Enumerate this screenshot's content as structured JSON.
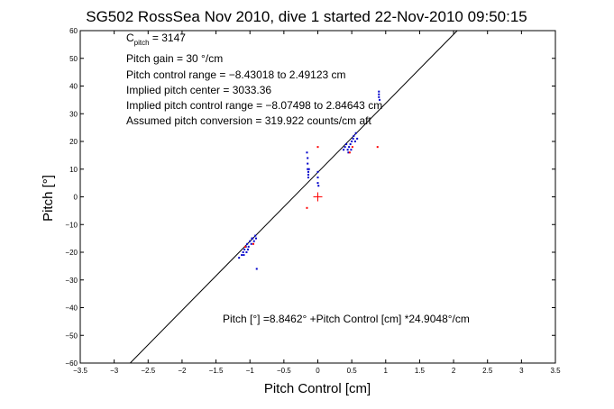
{
  "chart_data": {
    "type": "scatter",
    "title": "SG502 RossSea Nov 2010, dive 1 started 22-Nov-2010 09:50:15",
    "xlabel": "Pitch Control [cm]",
    "ylabel": "Pitch [°]",
    "xlim": [
      -3.5,
      3.5
    ],
    "ylim": [
      -60,
      60
    ],
    "xticks": [
      -3.5,
      -3,
      -2.5,
      -2,
      -1.5,
      -1,
      -0.5,
      0,
      0.5,
      1,
      1.5,
      2,
      2.5,
      3,
      3.5
    ],
    "yticks": [
      -60,
      -50,
      -40,
      -30,
      -20,
      -10,
      0,
      10,
      20,
      30,
      40,
      50,
      60
    ],
    "xtick_labels": [
      "−3.5",
      "−3",
      "−2.5",
      "−2",
      "−1.5",
      "−1",
      "−0.5",
      "0",
      "0.5",
      "1",
      "1.5",
      "2",
      "2.5",
      "3",
      "3.5"
    ],
    "ytick_labels": [
      "−60",
      "−50",
      "−40",
      "−30",
      "−20",
      "−10",
      "0",
      "10",
      "20",
      "30",
      "40",
      "50",
      "60"
    ],
    "grid": false,
    "fit_line": {
      "intercept": 8.8462,
      "slope": 24.9048,
      "color": "#000000"
    },
    "center_marker": {
      "x": 0,
      "y": 0,
      "color": "#ff0000"
    },
    "series": [
      {
        "marker": "point",
        "color": "#0000cc",
        "points": [
          [
            -1.16,
            -22
          ],
          [
            -1.12,
            -21
          ],
          [
            -1.1,
            -20
          ],
          [
            -1.08,
            -19
          ],
          [
            -1.06,
            -18
          ],
          [
            -1.05,
            -20
          ],
          [
            -1.04,
            -17
          ],
          [
            -1.02,
            -18
          ],
          [
            -1.0,
            -16
          ],
          [
            -0.98,
            -17
          ],
          [
            -0.96,
            -15
          ],
          [
            -0.94,
            -16
          ],
          [
            -0.92,
            -14
          ],
          [
            -0.91,
            -15
          ],
          [
            -0.9,
            -26
          ],
          [
            -1.09,
            -21
          ],
          [
            -1.03,
            -19
          ],
          [
            -0.97,
            -15
          ],
          [
            -0.16,
            16
          ],
          [
            -0.15,
            14
          ],
          [
            -0.15,
            12
          ],
          [
            -0.15,
            10
          ],
          [
            -0.14,
            9
          ],
          [
            -0.14,
            8
          ],
          [
            -0.14,
            7
          ],
          [
            -0.13,
            10
          ],
          [
            0.0,
            9
          ],
          [
            0.0,
            7
          ],
          [
            0.0,
            5
          ],
          [
            0.01,
            4
          ],
          [
            0.38,
            17
          ],
          [
            0.4,
            18
          ],
          [
            0.42,
            19
          ],
          [
            0.44,
            17
          ],
          [
            0.46,
            18
          ],
          [
            0.48,
            19
          ],
          [
            0.5,
            20
          ],
          [
            0.52,
            21
          ],
          [
            0.53,
            22
          ],
          [
            0.55,
            20
          ],
          [
            0.56,
            23
          ],
          [
            0.58,
            21
          ],
          [
            0.45,
            16
          ],
          [
            0.49,
            17
          ],
          [
            0.9,
            38
          ],
          [
            0.9,
            37
          ],
          [
            0.9,
            36
          ],
          [
            0.91,
            35
          ]
        ]
      },
      {
        "marker": "point",
        "color": "#ff0000",
        "points": [
          [
            -1.07,
            -18
          ],
          [
            -0.95,
            -17
          ],
          [
            -0.16,
            -4
          ],
          [
            0.0,
            18
          ],
          [
            0.47,
            16
          ],
          [
            0.51,
            18
          ],
          [
            0.88,
            18
          ]
        ]
      }
    ],
    "annotations": [
      {
        "base": "C",
        "sub": "pitch",
        "rest": " = 3147"
      },
      "Pitch gain = 30 °/cm",
      "Pitch control range = −8.43018 to 2.49123 cm",
      "Implied pitch center = 3033.36",
      "Implied pitch control range = −8.07498 to 2.84643 cm",
      "Assumed pitch conversion = 319.922 counts/cm aft"
    ],
    "fit_label": "Pitch [°] =8.8462° +Pitch Control [cm] *24.9048°/cm"
  }
}
